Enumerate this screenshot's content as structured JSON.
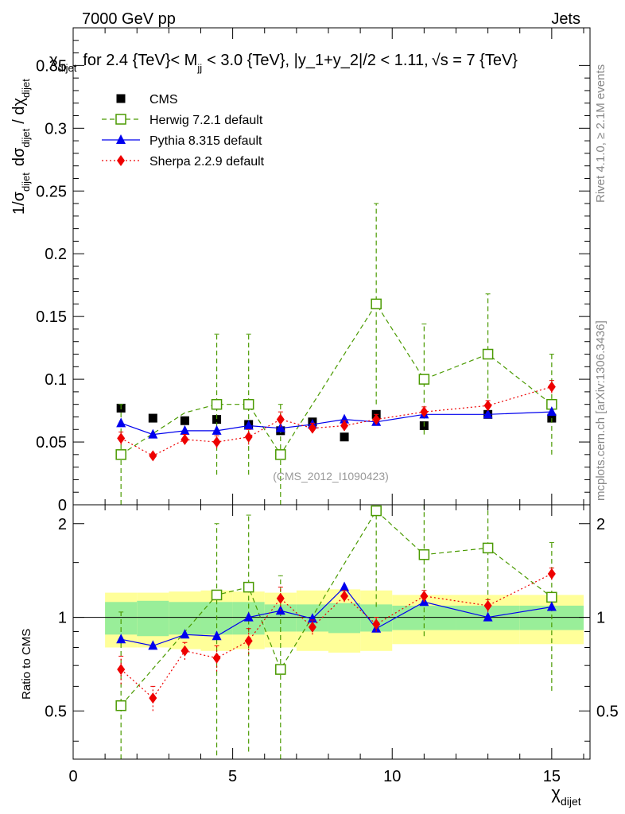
{
  "header": {
    "left": "7000 GeV pp",
    "right": "Jets"
  },
  "side_labels": {
    "top": "Rivet 4.1.0, ≥ 2.1M events",
    "bottom": "mcplots.cern.ch [arXiv:1306.3436]"
  },
  "chart_data": {
    "type": "scatter",
    "title": "χ_dijet for 2.4 {TeV}< M_jj < 3.0 {TeV}, |y_1+y_2|/2 < 1.11, √s = 7 {TeV}",
    "title_parts": {
      "chi": "χ",
      "chi_sub": "dijet",
      "for_text": "for 2.4 {TeV}< M",
      "m_sub": "jj",
      "rest_text": "< 3.0 {TeV}, |y_1+y_2|/2 < 1.11,",
      "sqrt": "√",
      "s_text": "s = 7 {TeV}"
    },
    "watermark": "(CMS_2012_I1090423)",
    "xlabel": "χ",
    "xlabel_sub": "dijet",
    "ylabel_top": "1/σ_dijet dσ_dijet / dχ_dijet",
    "ylabel_parts": {
      "a": "1/σ",
      "a_sub": "dijet",
      "b": "dσ",
      "b_sub": "dijet",
      "c": "/ dχ",
      "c_sub": "dijet"
    },
    "ylabel_ratio": "Ratio to CMS",
    "xlim": [
      0,
      16.2
    ],
    "ylim_top": [
      0,
      0.38
    ],
    "ylim_ratio": [
      0.35,
      2.3
    ],
    "x_ticks": [
      "0",
      "5",
      "10",
      "15"
    ],
    "x_tick_values": [
      0,
      5,
      10,
      15
    ],
    "y_ticks_top": [
      "0",
      "0.05",
      "0.1",
      "0.15",
      "0.2",
      "0.25",
      "0.3",
      "0.35"
    ],
    "y_tick_values_top": [
      0,
      0.05,
      0.1,
      0.15,
      0.2,
      0.25,
      0.3,
      0.35
    ],
    "y_ticks_ratio": [
      "0.5",
      "1",
      "2"
    ],
    "y_tick_values_ratio": [
      0.5,
      1,
      2
    ],
    "legend_position": "top-left",
    "data": {
      "name": "CMS",
      "x": [
        1.5,
        2.5,
        3.5,
        4.5,
        5.5,
        6.5,
        7.5,
        8.5,
        9.5,
        11,
        13,
        15
      ],
      "xerr": [
        0.5,
        0.5,
        0.5,
        0.5,
        0.5,
        0.5,
        0.5,
        0.5,
        0.5,
        1,
        1,
        1
      ],
      "y": [
        0.077,
        0.069,
        0.067,
        0.068,
        0.064,
        0.059,
        0.066,
        0.054,
        0.072,
        0.063,
        0.072,
        0.069
      ],
      "band_inner": [
        0.12,
        0.13,
        0.12,
        0.12,
        0.12,
        0.1,
        0.1,
        0.11,
        0.1,
        0.09,
        0.09,
        0.09
      ],
      "band_outer": [
        0.2,
        0.2,
        0.21,
        0.22,
        0.21,
        0.2,
        0.22,
        0.23,
        0.22,
        0.18,
        0.18,
        0.18
      ]
    },
    "series": [
      {
        "name": "Herwig 7.2.1 default",
        "color": "#4a9a00",
        "dash": "6,4",
        "marker": "open-square",
        "x": [
          1.5,
          2.5,
          3.5,
          4.5,
          5.5,
          6.5,
          7.5,
          8.5,
          9.5,
          11,
          13,
          15
        ],
        "y": [
          0.04,
          0.0567,
          0.0733,
          0.08,
          0.08,
          0.04,
          0.08,
          0.12,
          0.16,
          0.1,
          0.12,
          0.08
        ],
        "yerr": [
          0.04,
          null,
          null,
          0.056,
          0.056,
          0.04,
          null,
          null,
          0.08,
          0.044,
          0.048,
          0.04
        ],
        "ratio": [
          0.52,
          null,
          null,
          1.18,
          1.25,
          0.68,
          null,
          null,
          2.2,
          1.59,
          1.67,
          1.16
        ],
        "ratio_err": [
          0.52,
          null,
          null,
          0.82,
          0.88,
          0.68,
          null,
          null,
          1.12,
          0.72,
          0.68,
          0.58
        ],
        "has_marker": [
          true,
          false,
          false,
          true,
          true,
          true,
          false,
          false,
          true,
          true,
          true,
          true
        ]
      },
      {
        "name": "Pythia 8.315 default",
        "color": "#0000ee",
        "dash": "",
        "marker": "triangle",
        "x": [
          1.5,
          2.5,
          3.5,
          4.5,
          5.5,
          6.5,
          7.5,
          8.5,
          9.5,
          11,
          13,
          15
        ],
        "y": [
          0.065,
          0.056,
          0.059,
          0.059,
          0.063,
          0.061,
          0.064,
          0.068,
          0.066,
          0.072,
          0.072,
          0.074
        ],
        "yerr": [
          0.002,
          0.002,
          0.002,
          0.002,
          0.002,
          0.002,
          0.002,
          0.002,
          0.002,
          0.002,
          0.002,
          0.002
        ],
        "ratio": [
          0.85,
          0.81,
          0.88,
          0.87,
          1.0,
          1.05,
          0.99,
          1.25,
          0.92,
          1.12,
          1.0,
          1.08
        ],
        "ratio_err": [
          0.03,
          0.03,
          0.03,
          0.03,
          0.03,
          0.03,
          0.03,
          0.03,
          0.03,
          0.03,
          0.03,
          0.03
        ],
        "has_marker": [
          true,
          true,
          true,
          true,
          true,
          true,
          true,
          true,
          true,
          true,
          true,
          true
        ]
      },
      {
        "name": "Sherpa 2.2.9 default",
        "color": "#ee0000",
        "dash": "2,3",
        "marker": "diamond",
        "x": [
          1.5,
          2.5,
          3.5,
          4.5,
          5.5,
          6.5,
          7.5,
          8.5,
          9.5,
          11,
          13,
          15
        ],
        "y": [
          0.053,
          0.039,
          0.052,
          0.05,
          0.054,
          0.068,
          0.061,
          0.063,
          0.068,
          0.074,
          0.079,
          0.094
        ],
        "yerr": [
          0.005,
          0.003,
          0.004,
          0.005,
          0.006,
          0.006,
          0.004,
          0.004,
          0.004,
          0.004,
          0.004,
          0.005
        ],
        "ratio": [
          0.68,
          0.55,
          0.78,
          0.74,
          0.84,
          1.15,
          0.93,
          1.17,
          0.95,
          1.17,
          1.09,
          1.38
        ],
        "ratio_err": [
          0.07,
          0.05,
          0.05,
          0.07,
          0.08,
          0.1,
          0.05,
          0.05,
          0.05,
          0.05,
          0.05,
          0.06
        ],
        "has_marker": [
          true,
          true,
          true,
          true,
          true,
          true,
          true,
          true,
          true,
          true,
          true,
          true
        ]
      }
    ]
  }
}
